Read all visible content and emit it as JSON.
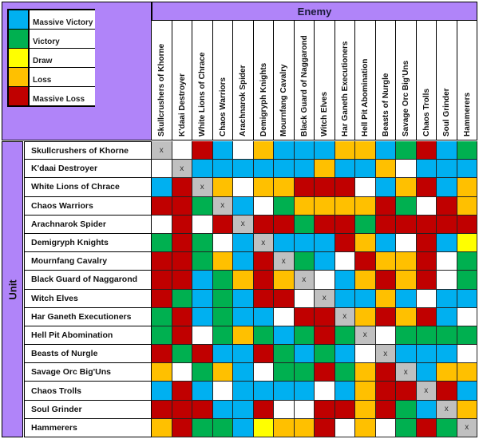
{
  "legend": [
    {
      "label": "Massive Victory",
      "key": "MV",
      "color": "#00b0f0"
    },
    {
      "label": "Victory",
      "key": "V",
      "color": "#00b050"
    },
    {
      "label": "Draw",
      "key": "D",
      "color": "#ffff00"
    },
    {
      "label": "Loss",
      "key": "L",
      "color": "#ffc000"
    },
    {
      "label": "Massive Loss",
      "key": "ML",
      "color": "#c00000"
    }
  ],
  "colors": {
    "MV": "#00b0f0",
    "V": "#00b050",
    "D": "#ffff00",
    "L": "#ffc000",
    "ML": "#c00000",
    "N": "#ffffff",
    "X": "#c0c0c0",
    "header_bg": "#b084f9"
  },
  "enemy_label": "Enemy",
  "unit_label": "Unit",
  "columns": [
    "Skullcrushers of Khorne",
    "K'daai Destroyer",
    "White Lions of Chrace",
    "Chaos Warriors",
    "Arachnarok Spider",
    "Demigryph Knights",
    "Mournfang Cavalry",
    "Black Guard of Naggarond",
    "Witch Elves",
    "Har Ganeth Executioners",
    "Hell Pit Abomination",
    "Beasts of Nurgle",
    "Savage Orc Big'Uns",
    "Chaos Trolls",
    "Soul Grinder",
    "Hammerers"
  ],
  "rows": [
    {
      "unit": "Skullcrushers of Khorne",
      "cells": [
        "X",
        "N",
        "ML",
        "MV",
        "N",
        "L",
        "MV",
        "MV",
        "MV",
        "L",
        "L",
        "MV",
        "V",
        "ML",
        "MV",
        "V"
      ]
    },
    {
      "unit": "K'daai Destroyer",
      "cells": [
        "N",
        "X",
        "MV",
        "MV",
        "MV",
        "MV",
        "MV",
        "MV",
        "L",
        "MV",
        "MV",
        "L",
        "N",
        "MV",
        "MV",
        "MV"
      ]
    },
    {
      "unit": "White Lions of Chrace",
      "cells": [
        "MV",
        "ML",
        "X",
        "L",
        "N",
        "L",
        "L",
        "ML",
        "ML",
        "ML",
        "N",
        "MV",
        "L",
        "ML",
        "MV",
        "L"
      ]
    },
    {
      "unit": "Chaos Warriors",
      "cells": [
        "ML",
        "ML",
        "V",
        "X",
        "MV",
        "N",
        "V",
        "L",
        "L",
        "L",
        "L",
        "ML",
        "V",
        "N",
        "ML",
        "L"
      ]
    },
    {
      "unit": "Arachnarok Spider",
      "cells": [
        "N",
        "ML",
        "N",
        "ML",
        "X",
        "ML",
        "ML",
        "V",
        "ML",
        "ML",
        "V",
        "ML",
        "ML",
        "ML",
        "ML",
        "ML"
      ]
    },
    {
      "unit": "Demigryph Knights",
      "cells": [
        "V",
        "ML",
        "V",
        "N",
        "MV",
        "X",
        "MV",
        "MV",
        "MV",
        "ML",
        "L",
        "MV",
        "N",
        "ML",
        "MV",
        "D"
      ]
    },
    {
      "unit": "Mournfang Cavalry",
      "cells": [
        "ML",
        "ML",
        "V",
        "L",
        "MV",
        "ML",
        "X",
        "V",
        "MV",
        "N",
        "ML",
        "L",
        "L",
        "ML",
        "N",
        "V"
      ]
    },
    {
      "unit": "Black Guard of Naggarond",
      "cells": [
        "ML",
        "ML",
        "MV",
        "V",
        "L",
        "ML",
        "L",
        "X",
        "N",
        "MV",
        "L",
        "ML",
        "L",
        "ML",
        "N",
        "V"
      ]
    },
    {
      "unit": "Witch Elves",
      "cells": [
        "ML",
        "V",
        "MV",
        "V",
        "MV",
        "ML",
        "ML",
        "N",
        "X",
        "MV",
        "MV",
        "L",
        "MV",
        "N",
        "MV",
        "MV"
      ]
    },
    {
      "unit": "Har Ganeth Executioners",
      "cells": [
        "V",
        "ML",
        "MV",
        "V",
        "MV",
        "MV",
        "N",
        "ML",
        "ML",
        "X",
        "L",
        "ML",
        "L",
        "ML",
        "MV",
        "N"
      ]
    },
    {
      "unit": "Hell Pit Abomination",
      "cells": [
        "V",
        "ML",
        "N",
        "V",
        "L",
        "V",
        "MV",
        "V",
        "ML",
        "V",
        "X",
        "N",
        "V",
        "V",
        "V",
        "V"
      ]
    },
    {
      "unit": "Beasts of Nurgle",
      "cells": [
        "ML",
        "V",
        "ML",
        "MV",
        "MV",
        "ML",
        "V",
        "MV",
        "V",
        "MV",
        "N",
        "X",
        "MV",
        "MV",
        "MV",
        "N"
      ]
    },
    {
      "unit": "Savage Orc Big'Uns",
      "cells": [
        "L",
        "N",
        "V",
        "L",
        "MV",
        "N",
        "V",
        "V",
        "ML",
        "V",
        "L",
        "ML",
        "X",
        "MV",
        "L",
        "L"
      ]
    },
    {
      "unit": "Chaos Trolls",
      "cells": [
        "MV",
        "ML",
        "MV",
        "N",
        "MV",
        "MV",
        "MV",
        "MV",
        "N",
        "MV",
        "L",
        "ML",
        "ML",
        "X",
        "ML",
        "MV"
      ]
    },
    {
      "unit": "Soul Grinder",
      "cells": [
        "ML",
        "ML",
        "ML",
        "MV",
        "MV",
        "ML",
        "N",
        "N",
        "ML",
        "ML",
        "L",
        "ML",
        "V",
        "MV",
        "X",
        "L"
      ]
    },
    {
      "unit": "Hammerers",
      "cells": [
        "L",
        "ML",
        "V",
        "V",
        "MV",
        "D",
        "L",
        "L",
        "ML",
        "N",
        "L",
        "N",
        "V",
        "ML",
        "V",
        "X"
      ]
    }
  ]
}
